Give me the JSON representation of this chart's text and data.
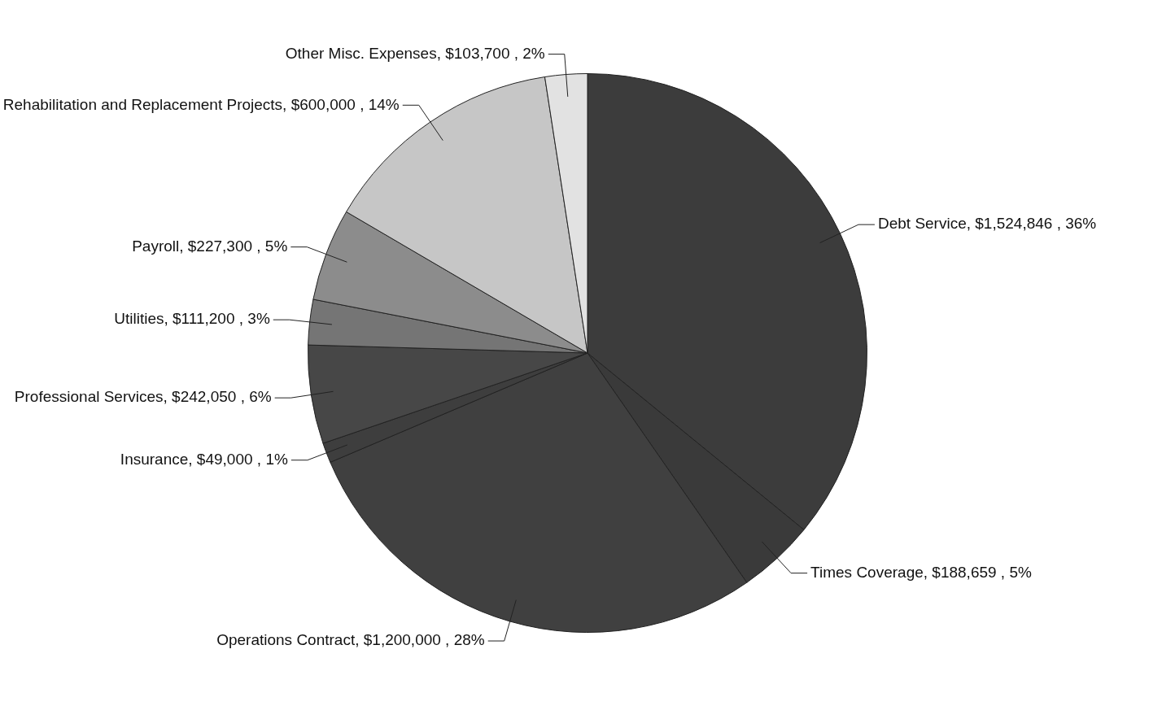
{
  "chart_data": {
    "type": "pie",
    "categories": [
      "Debt Service",
      "Times Coverage",
      "Operations Contract",
      "Insurance",
      "Professional Services",
      "Utilities",
      "Payroll",
      "Rehabilitation and Replacement Projects",
      "Other Misc. Expenses"
    ],
    "values": [
      1524846,
      188659,
      1200000,
      49000,
      242050,
      111200,
      227300,
      600000,
      103700
    ],
    "value_labels": [
      "$1,524,846 , 36%",
      "$188,659 , 5%",
      "$1,200,000 , 28%",
      "$49,000 , 1%",
      "$242,050 , 6%",
      "$111,200 , 3%",
      "$227,300 , 5%",
      "$600,000 , 14%",
      "$103,700 , 2%"
    ],
    "colors": [
      "#3c3c3c",
      "#3a3a3a",
      "#404040",
      "#3e3e3e",
      "#474747",
      "#757575",
      "#8c8c8c",
      "#c6c6c6",
      "#e2e2e2"
    ],
    "legend": false
  }
}
